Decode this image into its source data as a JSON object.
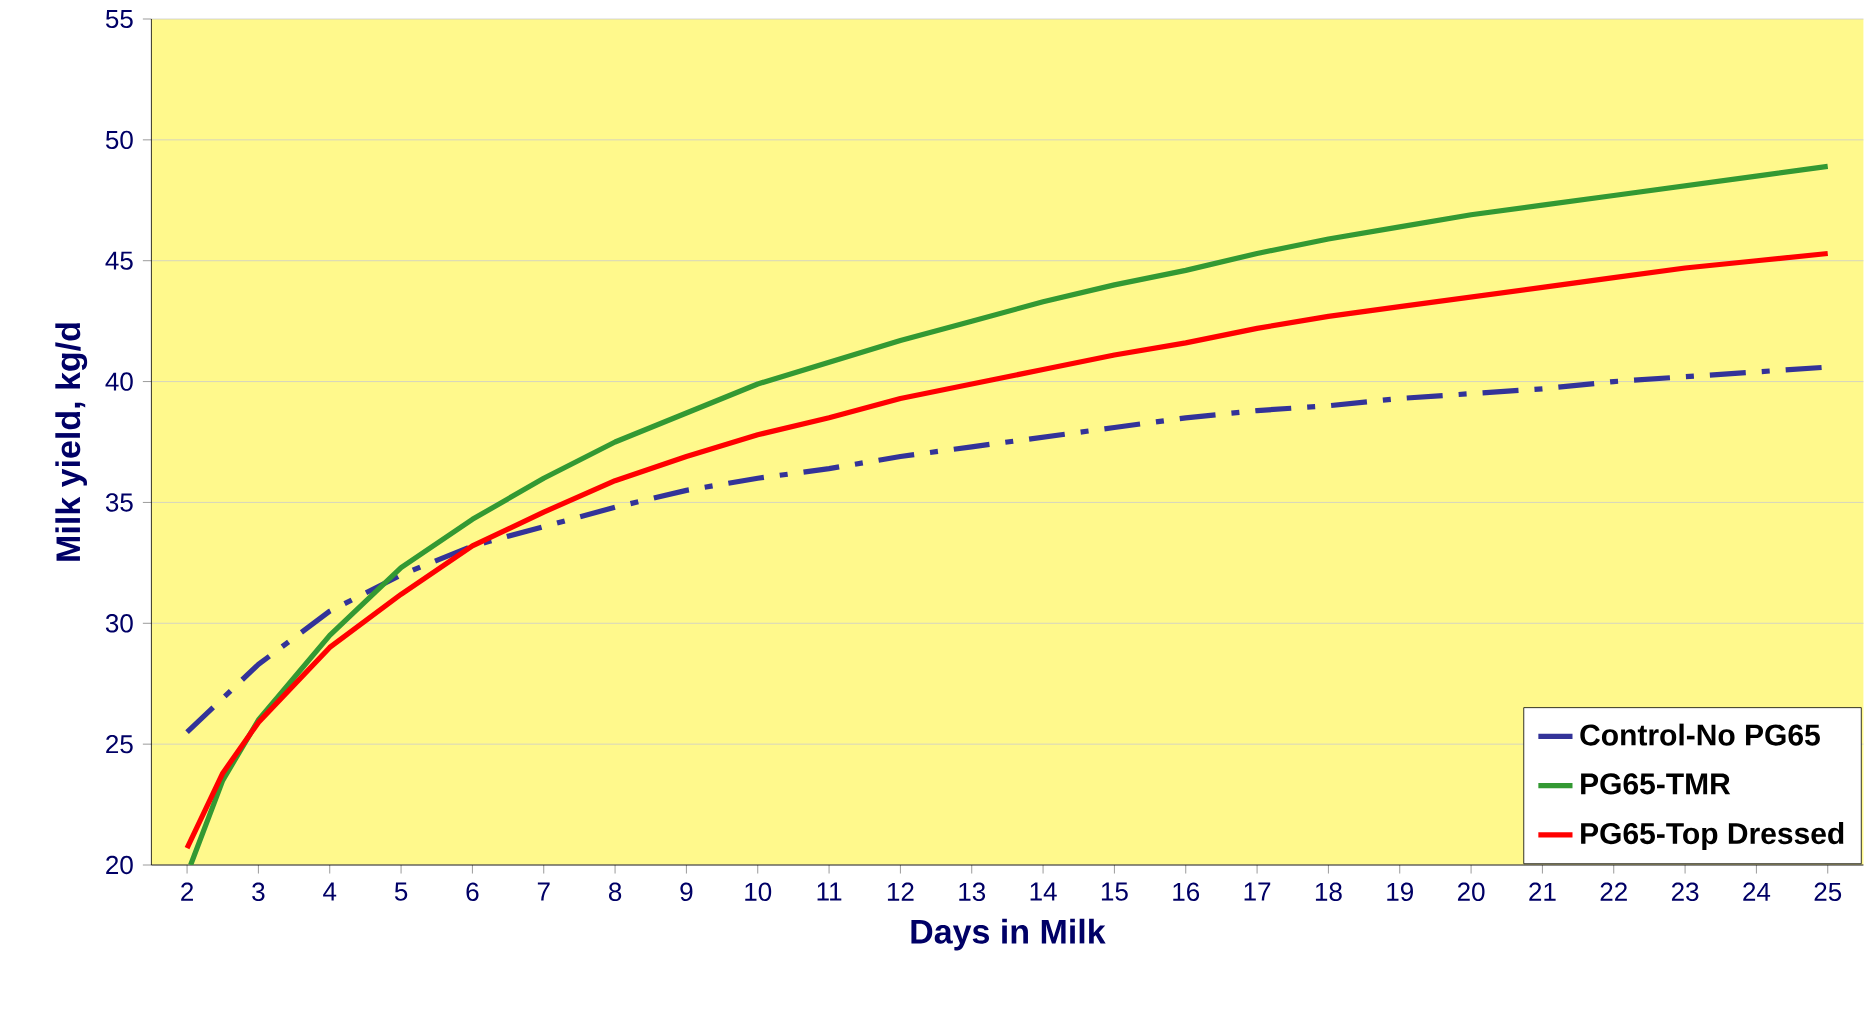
{
  "chart_data": {
    "type": "line",
    "xlabel": "Days in Milk",
    "ylabel": "Milk yield, kg/d",
    "xlim": [
      1.5,
      25.5
    ],
    "xticks": [
      2,
      3,
      4,
      5,
      6,
      7,
      8,
      9,
      10,
      11,
      12,
      13,
      14,
      15,
      16,
      17,
      18,
      19,
      20,
      21,
      22,
      23,
      24,
      25
    ],
    "ylim": [
      20,
      55
    ],
    "yticks": [
      20,
      25,
      30,
      35,
      40,
      45,
      50,
      55
    ],
    "grid": "y",
    "legend": "bottom right",
    "marker": "none",
    "series": [
      {
        "name": "Control-No PG65",
        "color": "#333399",
        "line_style": "dashed",
        "x": [
          2,
          3,
          4,
          5,
          6,
          7,
          8,
          9,
          10,
          11,
          12,
          13,
          14,
          15,
          16,
          17,
          18,
          19,
          20,
          21,
          22,
          23,
          24,
          25
        ],
        "values": [
          25.5,
          28.3,
          30.5,
          32.0,
          33.2,
          34.0,
          34.8,
          35.5,
          36.0,
          36.4,
          36.9,
          37.3,
          37.7,
          38.1,
          38.5,
          38.8,
          39.0,
          39.3,
          39.5,
          39.7,
          40.0,
          40.2,
          40.4,
          40.6
        ]
      },
      {
        "name": "PG65-TMR",
        "color": "#339933",
        "line_style": "solid",
        "x": [
          2.05,
          2.5,
          3,
          4,
          5,
          6,
          7,
          8,
          9,
          10,
          11,
          12,
          13,
          14,
          15,
          16,
          17,
          18,
          19,
          20,
          21,
          22,
          23,
          24,
          25
        ],
        "values": [
          20.0,
          23.5,
          26.0,
          29.5,
          32.3,
          34.3,
          36.0,
          37.5,
          38.7,
          39.9,
          40.8,
          41.7,
          42.5,
          43.3,
          44.0,
          44.6,
          45.3,
          45.9,
          46.4,
          46.9,
          47.3,
          47.7,
          48.1,
          48.5,
          48.9
        ]
      },
      {
        "name": "PG65-Top Dressed",
        "color": "#ff0000",
        "line_style": "solid",
        "x": [
          2,
          2.5,
          3,
          4,
          5,
          6,
          7,
          8,
          9,
          10,
          11,
          12,
          13,
          14,
          15,
          16,
          17,
          18,
          19,
          20,
          21,
          22,
          23,
          24,
          25
        ],
        "values": [
          20.7,
          23.8,
          25.9,
          29.0,
          31.2,
          33.2,
          34.6,
          35.9,
          36.9,
          37.8,
          38.5,
          39.3,
          39.9,
          40.5,
          41.1,
          41.6,
          42.2,
          42.7,
          43.1,
          43.5,
          43.9,
          44.3,
          44.7,
          45.0,
          45.3
        ]
      }
    ]
  }
}
